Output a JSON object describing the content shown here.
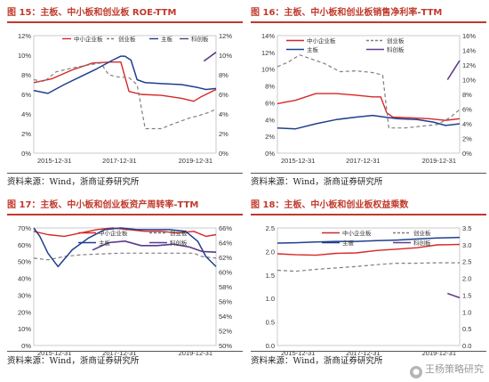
{
  "colors": {
    "sme": "#d62728",
    "gem": "#7f7f7f",
    "main": "#1f3f8f",
    "chinext": "#5b3b8c",
    "accent": "#c0392b"
  },
  "source_text": "资料来源：Wind，浙商证券研究所",
  "watermark": {
    "icon": "wechat-icon",
    "text": "王杨策略研究"
  },
  "legend_labels": {
    "sme": "中小企业板",
    "gem": "创业板",
    "main": "主板",
    "chinext": "科创板"
  },
  "chart_data": [
    {
      "title": "图 15：主板、中小板和创业板 ROE-TTM",
      "type": "line",
      "x_tick_labels": [
        "2015-12-31",
        "2017-12-31",
        "2019-12-31"
      ],
      "left_axis": {
        "ticks": [
          "0%",
          "2%",
          "4%",
          "6%",
          "8%",
          "10%",
          "12%"
        ],
        "ylim": [
          0,
          12
        ]
      },
      "right_axis": {
        "ticks": [
          "0%",
          "2%",
          "4%",
          "6%",
          "8%",
          "10%",
          "12%"
        ],
        "ylim": [
          0,
          12
        ]
      },
      "xlim": [
        2015.85,
        2020.35
      ],
      "series": [
        {
          "key": "sme",
          "axis": "left",
          "x": [
            2015.85,
            2016.3,
            2016.8,
            2017.3,
            2017.75,
            2018.0,
            2018.2,
            2018.5,
            2019.0,
            2019.5,
            2019.8,
            2020.0,
            2020.35
          ],
          "y": [
            7.2,
            7.6,
            8.5,
            9.2,
            9.3,
            9.3,
            6.3,
            6.0,
            5.9,
            5.6,
            5.3,
            5.8,
            6.5
          ]
        },
        {
          "key": "gem",
          "axis": "left",
          "x": [
            2015.85,
            2016.1,
            2016.4,
            2016.8,
            2017.2,
            2017.5,
            2017.7,
            2017.9,
            2018.2,
            2018.4,
            2018.6,
            2019.0,
            2019.3,
            2019.7,
            2019.9,
            2020.2,
            2020.35
          ],
          "y": [
            7.5,
            7.3,
            8.3,
            8.7,
            9.0,
            9.2,
            8.0,
            7.8,
            7.7,
            7.0,
            2.5,
            2.5,
            3.0,
            3.6,
            3.8,
            4.2,
            4.5
          ]
        },
        {
          "key": "main",
          "axis": "left",
          "x": [
            2015.85,
            2016.2,
            2016.6,
            2017.0,
            2017.4,
            2017.8,
            2018.0,
            2018.1,
            2018.25,
            2018.4,
            2018.6,
            2019.0,
            2019.5,
            2019.9,
            2020.1,
            2020.35
          ],
          "y": [
            6.4,
            6.1,
            7.0,
            7.8,
            8.6,
            9.5,
            9.9,
            9.9,
            9.5,
            7.5,
            7.2,
            7.1,
            7.0,
            6.7,
            6.5,
            6.6
          ]
        },
        {
          "key": "chinext",
          "axis": "right",
          "x": [
            2020.05,
            2020.35
          ],
          "y": [
            9.4,
            10.3
          ]
        }
      ]
    },
    {
      "title": "图 16：主板、中小板和创业板销售净利率-TTM",
      "type": "line",
      "x_tick_labels": [
        "2015-12-31",
        "2017-12-31",
        "2019-12-31"
      ],
      "left_axis": {
        "ticks": [
          "0%",
          "2%",
          "4%",
          "6%",
          "8%",
          "10%",
          "12%",
          "14%"
        ],
        "ylim": [
          0,
          14
        ]
      },
      "right_axis": {
        "ticks": [
          "0%",
          "2%",
          "4%",
          "6%",
          "8%",
          "10%",
          "12%",
          "14%",
          "16%"
        ],
        "ylim": [
          0,
          16
        ]
      },
      "xlim": [
        2015.85,
        2020.35
      ],
      "series": [
        {
          "key": "sme",
          "axis": "left",
          "x": [
            2015.85,
            2016.3,
            2016.8,
            2017.3,
            2017.8,
            2018.2,
            2018.4,
            2018.55,
            2018.7,
            2019.2,
            2019.6,
            2020.0,
            2020.35
          ],
          "y": [
            5.9,
            6.3,
            7.1,
            7.1,
            6.9,
            6.7,
            6.7,
            4.8,
            4.3,
            4.2,
            4.1,
            3.9,
            4.1
          ]
        },
        {
          "key": "gem",
          "axis": "left",
          "x": [
            2015.85,
            2016.1,
            2016.4,
            2016.7,
            2017.0,
            2017.4,
            2017.8,
            2018.2,
            2018.45,
            2018.6,
            2019.0,
            2019.4,
            2019.8,
            2020.1,
            2020.35
          ],
          "y": [
            10.3,
            10.8,
            11.7,
            11.2,
            10.7,
            9.7,
            9.8,
            9.6,
            9.3,
            3.0,
            3.0,
            3.2,
            3.4,
            4.2,
            5.2
          ]
        },
        {
          "key": "main",
          "axis": "left",
          "x": [
            2015.85,
            2016.3,
            2016.8,
            2017.3,
            2017.8,
            2018.2,
            2018.5,
            2018.8,
            2019.3,
            2019.7,
            2020.0,
            2020.35
          ],
          "y": [
            3.0,
            2.9,
            3.5,
            4.0,
            4.3,
            4.5,
            4.3,
            4.1,
            4.0,
            3.7,
            3.3,
            3.5
          ]
        },
        {
          "key": "chinext",
          "axis": "right",
          "x": [
            2020.05,
            2020.35
          ],
          "y": [
            10.0,
            12.6
          ]
        }
      ]
    },
    {
      "title": "图 17：主板、中小板和创业板资产周转率-TTM",
      "type": "line",
      "x_tick_labels": [
        "2015-12-31",
        "2017-12-31",
        "2019-12-31"
      ],
      "left_axis": {
        "ticks": [
          "0%",
          "10%",
          "20%",
          "30%",
          "40%",
          "50%",
          "60%",
          "70%"
        ],
        "ylim": [
          0,
          70
        ]
      },
      "right_axis": {
        "ticks": [
          "50%",
          "52%",
          "54%",
          "56%",
          "58%",
          "60%",
          "62%",
          "64%",
          "66%"
        ],
        "ylim": [
          50,
          66
        ]
      },
      "xlim": [
        2015.85,
        2020.35
      ],
      "series": [
        {
          "key": "sme",
          "axis": "left",
          "x": [
            2015.85,
            2016.2,
            2016.6,
            2017.0,
            2017.4,
            2017.8,
            2018.2,
            2018.6,
            2019.0,
            2019.4,
            2019.8,
            2020.1,
            2020.35
          ],
          "y": [
            68,
            66,
            65,
            67,
            69,
            70,
            69,
            68,
            68,
            67,
            68,
            65,
            66
          ]
        },
        {
          "key": "gem",
          "axis": "left",
          "x": [
            2015.85,
            2016.2,
            2016.6,
            2017.0,
            2017.5,
            2018.0,
            2018.5,
            2019.0,
            2019.4,
            2019.8,
            2020.0,
            2020.35
          ],
          "y": [
            52,
            51,
            53,
            54,
            54.5,
            55,
            55,
            55,
            55,
            55,
            53,
            52
          ]
        },
        {
          "key": "main",
          "axis": "left",
          "x": [
            2015.85,
            2016.0,
            2016.2,
            2016.45,
            2016.8,
            2017.2,
            2017.6,
            2018.0,
            2018.4,
            2018.8,
            2019.2,
            2019.6,
            2019.9,
            2020.1,
            2020.35
          ],
          "y": [
            70,
            65,
            55,
            47,
            57,
            64,
            69,
            70,
            69,
            69,
            69,
            68,
            62,
            53,
            47
          ]
        },
        {
          "key": "chinext",
          "axis": "right",
          "x": [
            2017.3,
            2017.7,
            2018.1,
            2018.5,
            2018.9,
            2019.3,
            2019.7,
            2020.0,
            2020.35
          ],
          "y": [
            63.0,
            64.0,
            64.2,
            63.6,
            63.6,
            63.8,
            63.4,
            62.8,
            62.7
          ]
        }
      ]
    },
    {
      "title": "图 18：主板、中小板和创业板权益乘数",
      "type": "line",
      "x_tick_labels": [
        "2015-12-31",
        "2017-12-31",
        "2019-12-31"
      ],
      "left_axis": {
        "ticks": [
          "0.0",
          "0.5",
          "1.0",
          "1.5",
          "2.0",
          "2.5"
        ],
        "ylim": [
          0,
          2.5
        ]
      },
      "right_axis": {
        "ticks": [
          "0.0",
          "0.5",
          "1.0",
          "1.5",
          "2.0",
          "2.5",
          "3.0",
          "3.5"
        ],
        "ylim": [
          0,
          3.5
        ]
      },
      "xlim": [
        2015.85,
        2020.35
      ],
      "series": [
        {
          "key": "sme",
          "axis": "left",
          "x": [
            2015.85,
            2016.3,
            2016.8,
            2017.3,
            2017.8,
            2018.3,
            2018.8,
            2019.3,
            2019.8,
            2020.35
          ],
          "y": [
            1.95,
            1.93,
            1.92,
            1.96,
            1.97,
            2.02,
            2.05,
            2.08,
            2.14,
            2.15
          ]
        },
        {
          "key": "gem",
          "axis": "left",
          "x": [
            2015.85,
            2016.3,
            2016.8,
            2017.3,
            2017.8,
            2018.3,
            2018.8,
            2019.3,
            2019.8,
            2020.35
          ],
          "y": [
            1.6,
            1.58,
            1.62,
            1.65,
            1.68,
            1.72,
            1.75,
            1.75,
            1.76,
            1.76
          ]
        },
        {
          "key": "main",
          "axis": "right",
          "x": [
            2015.85,
            2016.3,
            2016.8,
            2017.3,
            2017.8,
            2018.3,
            2018.8,
            2019.3,
            2019.8,
            2020.35
          ],
          "y": [
            3.05,
            3.06,
            3.08,
            3.1,
            3.1,
            3.12,
            3.14,
            3.17,
            3.2,
            3.22
          ]
        },
        {
          "key": "chinext",
          "axis": "right",
          "x": [
            2020.05,
            2020.35
          ],
          "y": [
            1.55,
            1.42
          ]
        }
      ]
    }
  ]
}
